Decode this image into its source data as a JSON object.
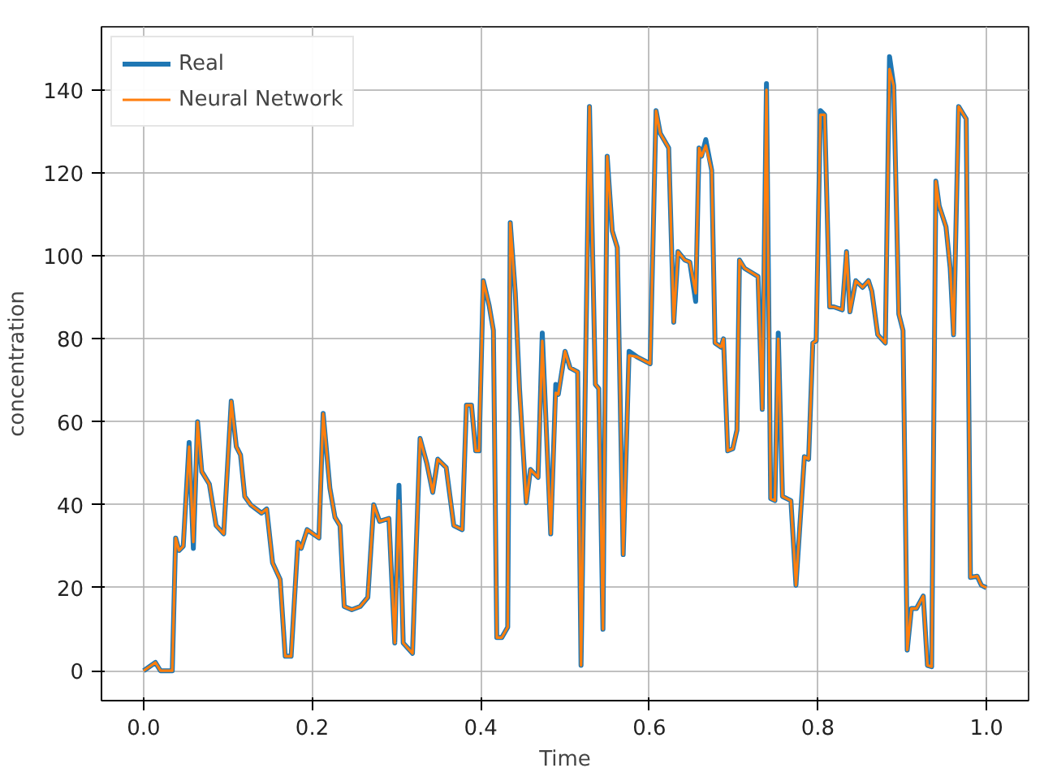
{
  "chart_data": {
    "type": "line",
    "xlabel": "Time",
    "ylabel": "concentration",
    "x": [
      0,
      0.014,
      0.02,
      0.034,
      0.038,
      0.042,
      0.047,
      0.054,
      0.059,
      0.064,
      0.069,
      0.078,
      0.086,
      0.095,
      0.104,
      0.11,
      0.115,
      0.12,
      0.127,
      0.14,
      0.146,
      0.153,
      0.162,
      0.168,
      0.175,
      0.183,
      0.187,
      0.194,
      0.208,
      0.213,
      0.221,
      0.227,
      0.233,
      0.238,
      0.247,
      0.257,
      0.266,
      0.273,
      0.28,
      0.291,
      0.298,
      0.303,
      0.308,
      0.319,
      0.328,
      0.336,
      0.343,
      0.349,
      0.359,
      0.368,
      0.378,
      0.383,
      0.389,
      0.394,
      0.398,
      0.403,
      0.41,
      0.415,
      0.419,
      0.425,
      0.432,
      0.435,
      0.441,
      0.446,
      0.454,
      0.459,
      0.468,
      0.473,
      0.483,
      0.489,
      0.492,
      0.5,
      0.506,
      0.515,
      0.519,
      0.529,
      0.536,
      0.54,
      0.545,
      0.55,
      0.556,
      0.562,
      0.569,
      0.576,
      0.585,
      0.601,
      0.608,
      0.613,
      0.623,
      0.629,
      0.634,
      0.642,
      0.648,
      0.655,
      0.659,
      0.662,
      0.667,
      0.674,
      0.678,
      0.685,
      0.688,
      0.693,
      0.699,
      0.704,
      0.707,
      0.713,
      0.729,
      0.734,
      0.739,
      0.744,
      0.749,
      0.753,
      0.758,
      0.768,
      0.774,
      0.784,
      0.789,
      0.794,
      0.798,
      0.803,
      0.808,
      0.814,
      0.819,
      0.829,
      0.834,
      0.838,
      0.845,
      0.853,
      0.86,
      0.864,
      0.871,
      0.88,
      0.885,
      0.89,
      0.896,
      0.901,
      0.906,
      0.911,
      0.917,
      0.925,
      0.93,
      0.935,
      0.94,
      0.944,
      0.952,
      0.957,
      0.961,
      0.967,
      0.976,
      0.981,
      0.989,
      0.994,
      1.0
    ],
    "series": [
      {
        "name": "Real",
        "color": "#1f77b4",
        "values": [
          0,
          2,
          0,
          0,
          32,
          29,
          30,
          55,
          29.5,
          60,
          48,
          45,
          35,
          33,
          65,
          54,
          52,
          42,
          40,
          38,
          39,
          26,
          22,
          3.5,
          3.5,
          31,
          29.5,
          34,
          32,
          62,
          44,
          37,
          35,
          15.5,
          14.7,
          15.5,
          17.7,
          40,
          36,
          36.7,
          6.7,
          44.7,
          6.7,
          4.2,
          56,
          50,
          43,
          51,
          49,
          35,
          34,
          64,
          64,
          53,
          53,
          94,
          88,
          82,
          8,
          8,
          10.5,
          108,
          91,
          68,
          40.5,
          48.5,
          46.6,
          81.4,
          33,
          69,
          66.6,
          77,
          73,
          72,
          1.3,
          136,
          69,
          68,
          10,
          124,
          106,
          102,
          28,
          77,
          75.7,
          74,
          135,
          129.5,
          126,
          84,
          101,
          99,
          98.5,
          89,
          126,
          124,
          128,
          120.6,
          79,
          78,
          80,
          53,
          53.5,
          58,
          99,
          97,
          95,
          63,
          141.5,
          41.5,
          41,
          81.4,
          42,
          41,
          20.6,
          51.6,
          51,
          79,
          79.5,
          135,
          134,
          87.7,
          87.7,
          87,
          101,
          86.5,
          94,
          92.4,
          94,
          91.5,
          81,
          79,
          148,
          141,
          86,
          82,
          5,
          15,
          15,
          18,
          1.3,
          1,
          118,
          112,
          107,
          97,
          81,
          136,
          133,
          22.5,
          22.8,
          20.6,
          20
        ]
      },
      {
        "name": "Neural Network",
        "color": "#ff7f0e",
        "values": [
          0,
          2,
          0,
          0,
          32,
          29,
          30,
          54,
          31,
          60,
          48,
          45,
          35,
          33,
          65,
          54,
          52,
          42,
          40,
          38,
          39,
          26,
          22,
          3.5,
          3.5,
          31,
          29.5,
          34,
          32,
          62,
          44,
          37,
          35,
          15.5,
          14.7,
          15.5,
          17.7,
          40,
          36,
          36.7,
          6.7,
          41,
          6.7,
          4.2,
          56,
          50,
          43,
          51,
          49,
          35,
          34,
          64,
          64,
          53,
          53,
          94,
          88,
          82,
          8,
          8,
          10.5,
          108,
          91,
          68,
          40.5,
          48.5,
          46.6,
          79.5,
          33,
          67,
          66.6,
          77,
          73,
          72,
          1.3,
          136,
          69,
          68,
          10,
          124,
          106,
          102,
          28,
          76,
          75.7,
          74,
          135,
          129.5,
          126,
          84,
          101,
          99,
          98.5,
          91,
          126,
          124,
          126.6,
          120.6,
          79,
          78,
          80,
          53,
          53.5,
          58,
          99,
          97,
          95,
          63,
          140,
          41.5,
          41,
          80,
          42,
          41,
          20.6,
          51.6,
          51,
          79,
          79.5,
          134,
          134,
          87.7,
          87.7,
          87,
          101,
          86.5,
          94,
          92.4,
          94,
          91.5,
          81,
          79,
          145,
          141,
          86,
          82,
          5,
          15,
          15,
          18,
          1.3,
          1,
          118,
          112,
          107,
          97,
          81,
          136,
          133,
          22.5,
          22.8,
          20.6,
          20
        ]
      }
    ],
    "xlim": [
      -0.05,
      1.05
    ],
    "ylim": [
      -7.2,
      155.2
    ],
    "xticks": [
      {
        "value": 0,
        "label": "0.0"
      },
      {
        "value": 0.2,
        "label": "0.2"
      },
      {
        "value": 0.4,
        "label": "0.4"
      },
      {
        "value": 0.6,
        "label": "0.6"
      },
      {
        "value": 0.8,
        "label": "0.8"
      },
      {
        "value": 1,
        "label": "1.0"
      }
    ],
    "yticks": [
      0,
      20,
      40,
      60,
      80,
      100,
      120,
      140
    ],
    "grid": true,
    "legend": "top left",
    "line_style": "solid",
    "marker": "none"
  }
}
